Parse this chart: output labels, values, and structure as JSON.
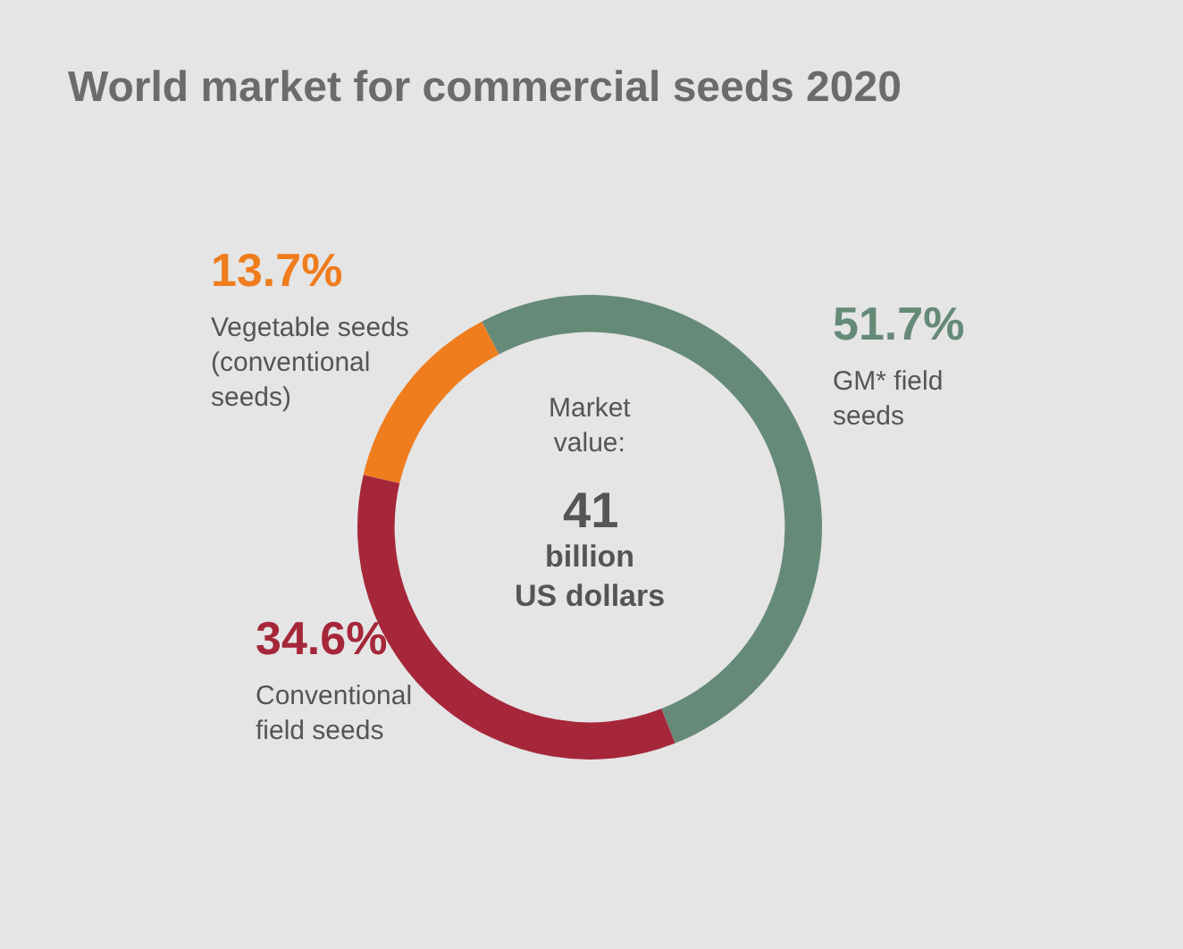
{
  "chart_data": {
    "type": "donut",
    "title": "World market for commercial seeds 2020",
    "categories": [
      "Vegetable seeds\n(conventional\nseeds)",
      "GM* field\nseeds",
      "Conventional\nfield seeds"
    ],
    "values": [
      13.7,
      51.7,
      34.6
    ],
    "colors": [
      "#ef7d1e",
      "#668a78",
      "#a6273a"
    ],
    "value_labels": [
      "13.7%",
      "51.7%",
      "34.6%"
    ],
    "annotations": [
      "Market\nvalue:",
      "41",
      "billion\nUS dollars"
    ],
    "legend": false
  }
}
